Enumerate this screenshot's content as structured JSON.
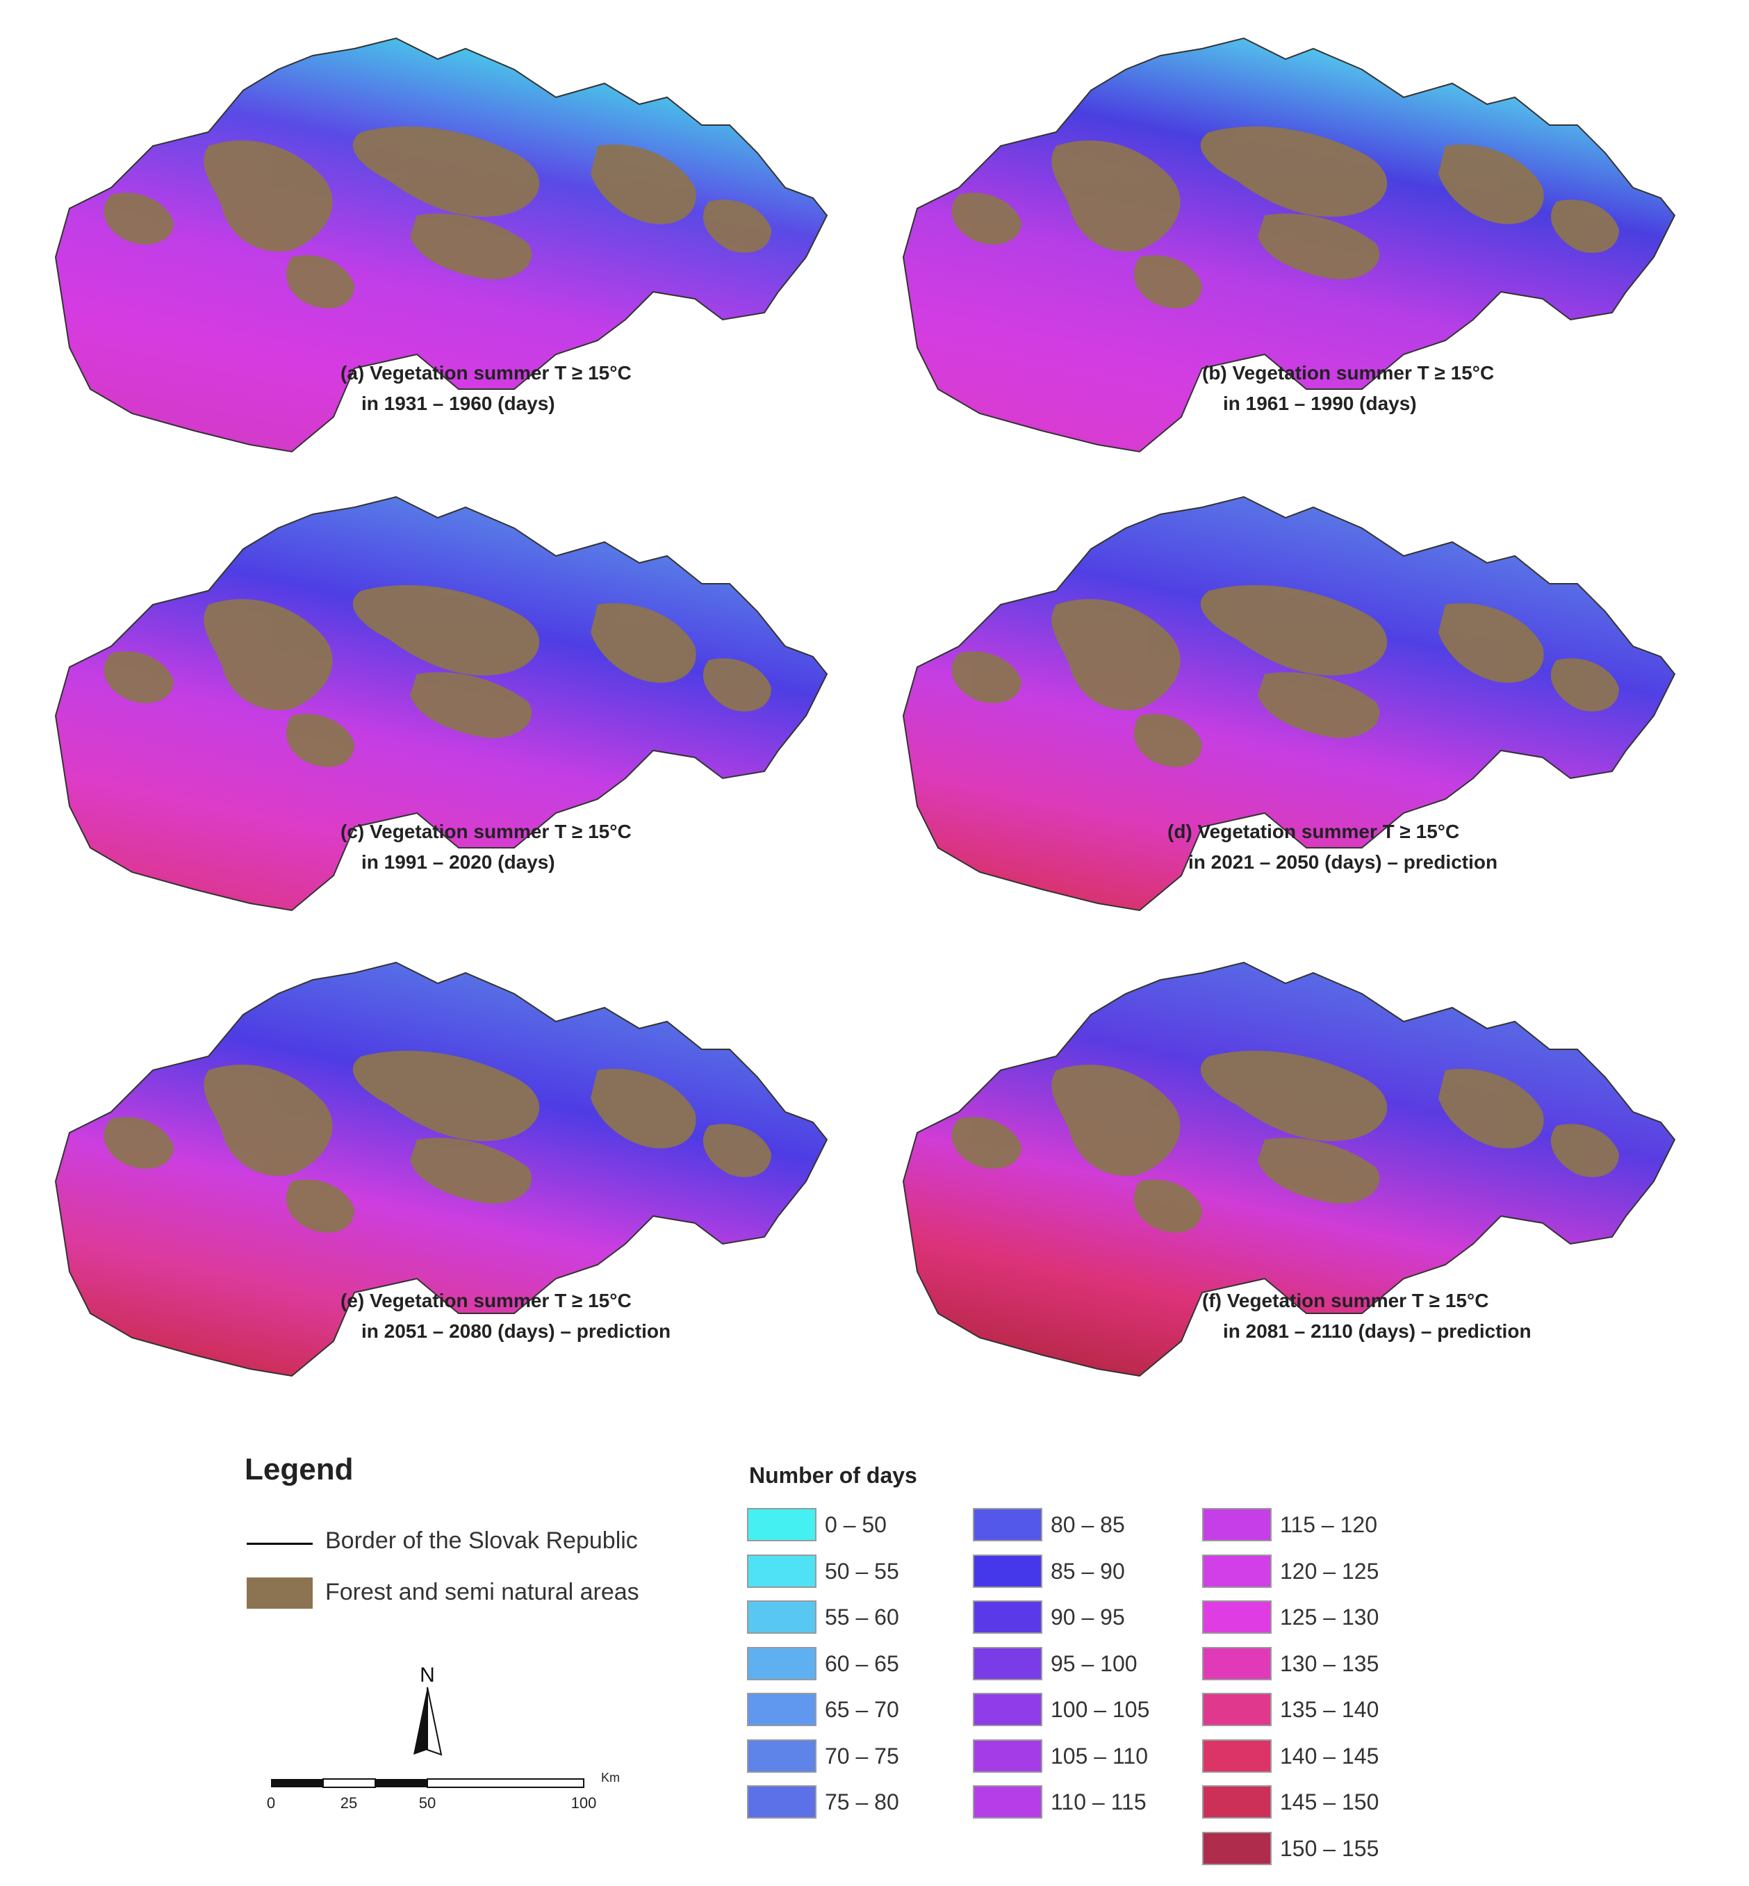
{
  "panels": [
    {
      "id": "a",
      "line1": "(a) Vegetation summer T ≥ 15°C",
      "line2": "in 1931 – 1960 (days)",
      "colors": {
        "north": "#45e3ea",
        "mid": "#5a4ae6",
        "south1": "#c03ee8",
        "south2": "#d63be0",
        "sw": "#d43ac8"
      }
    },
    {
      "id": "b",
      "line1": "(b) Vegetation summer T ≥ 15°C",
      "line2": "in 1961 – 1990 (days)",
      "colors": {
        "north": "#55e6ee",
        "mid": "#4a3fe0",
        "south1": "#b63ee6",
        "south2": "#d23de2",
        "sw": "#d93bd0"
      }
    },
    {
      "id": "c",
      "line1": "(c) Vegetation summer T ≥ 15°C",
      "line2": "in 1991 – 2020 (days)",
      "colors": {
        "north": "#5b8ee8",
        "mid": "#4e3ee4",
        "south1": "#c43ee4",
        "south2": "#dc3cc8",
        "sw": "#dc3690"
      }
    },
    {
      "id": "d",
      "line1": "(d) Vegetation summer T ≥ 15°C",
      "line2": "in 2021 – 2050 (days) – prediction",
      "colors": {
        "north": "#5c84e6",
        "mid": "#5040e4",
        "south1": "#c63ee2",
        "south2": "#dc3ab8",
        "sw": "#d8326a"
      }
    },
    {
      "id": "e",
      "line1": "(e) Vegetation summer T ≥ 15°C",
      "line2": "in 2051 – 2080 (days) – prediction",
      "colors": {
        "north": "#5a7ee6",
        "mid": "#4e3ce4",
        "south1": "#cc3ee0",
        "south2": "#dc3a9c",
        "sw": "#cc2d55"
      }
    },
    {
      "id": "f",
      "line1": "(f) Vegetation summer T ≥ 15°C",
      "line2": "in 2081 – 2110 (days) – prediction",
      "colors": {
        "north": "#5876e6",
        "mid": "#5a3ce2",
        "south1": "#d03cd6",
        "south2": "#dc3278",
        "sw": "#b82848"
      }
    }
  ],
  "legend": {
    "title": "Legend",
    "border_label": "Border of the Slovak Republic",
    "forest_label": "Forest and semi natural areas",
    "forest_color": "#8c7352"
  },
  "days_legend": {
    "title": "Number of days",
    "classes": [
      {
        "label": "0 – 50",
        "color": "#44f0f2"
      },
      {
        "label": "50 – 55",
        "color": "#4fe2f4"
      },
      {
        "label": "55 – 60",
        "color": "#58c8f2"
      },
      {
        "label": "60 – 65",
        "color": "#5eb0f0"
      },
      {
        "label": "65 – 70",
        "color": "#5f98ee"
      },
      {
        "label": "70 – 75",
        "color": "#5e84ea"
      },
      {
        "label": "75 – 80",
        "color": "#5c70e8"
      },
      {
        "label": "80 – 85",
        "color": "#5458ea"
      },
      {
        "label": "85 – 90",
        "color": "#4438ea"
      },
      {
        "label": "90 – 95",
        "color": "#5a3ae8"
      },
      {
        "label": "95 – 100",
        "color": "#7a3ce6"
      },
      {
        "label": "100 – 105",
        "color": "#903ce8"
      },
      {
        "label": "105 – 110",
        "color": "#a43ce8"
      },
      {
        "label": "110 – 115",
        "color": "#b63ee8"
      },
      {
        "label": "115 – 120",
        "color": "#c63ee8"
      },
      {
        "label": "120 – 125",
        "color": "#d23ee8"
      },
      {
        "label": "125 – 130",
        "color": "#e03ce4"
      },
      {
        "label": "130 – 135",
        "color": "#e03ab8"
      },
      {
        "label": "135 – 140",
        "color": "#e0388c"
      },
      {
        "label": "140 – 145",
        "color": "#dc3466"
      },
      {
        "label": "145 – 150",
        "color": "#cc3058"
      },
      {
        "label": "150 – 155",
        "color": "#b02c4c"
      }
    ]
  },
  "north_label": "N",
  "scale": {
    "ticks": [
      "0",
      "25",
      "50",
      "100"
    ],
    "unit": "Km"
  }
}
